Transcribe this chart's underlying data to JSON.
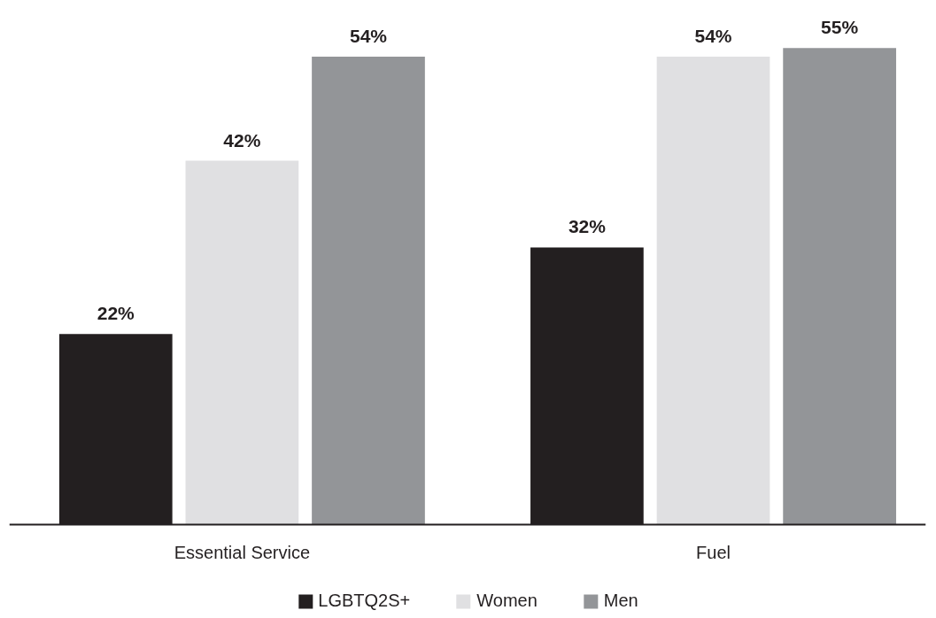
{
  "chart_data": {
    "type": "bar",
    "categories": [
      "Essential Service",
      "Fuel"
    ],
    "series": [
      {
        "name": "LGBTQ2S+",
        "color": "#231f20",
        "values": [
          22,
          32
        ],
        "value_labels": [
          "22%",
          "32%"
        ]
      },
      {
        "name": "Women",
        "color": "#e0e0e2",
        "values": [
          42,
          54
        ],
        "value_labels": [
          "42%",
          "54%"
        ]
      },
      {
        "name": "Men",
        "color": "#939598",
        "values": [
          54,
          55
        ],
        "value_labels": [
          "54%",
          "55%"
        ]
      }
    ],
    "legend": "bottom",
    "grid": false
  }
}
